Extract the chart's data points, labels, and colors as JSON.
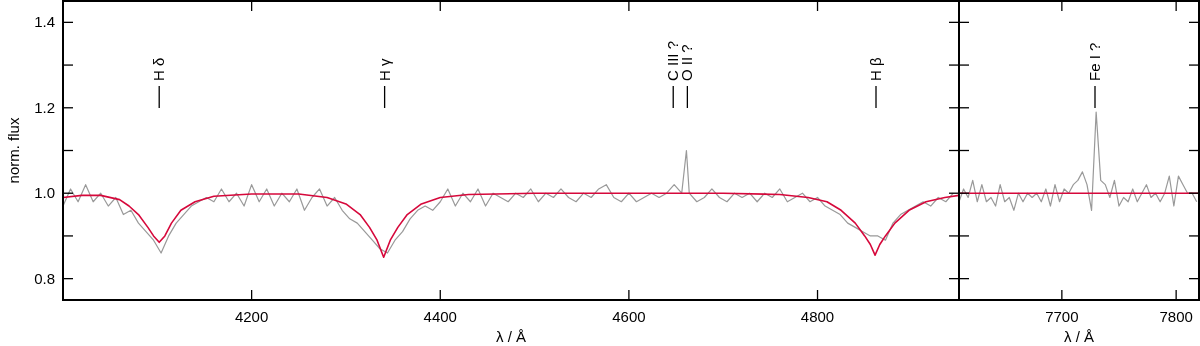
{
  "chart_data": [
    {
      "type": "line",
      "xlabel": "λ / Å",
      "ylabel": "norm. flux",
      "xlim": [
        4000,
        4950
      ],
      "ylim": [
        0.75,
        1.45
      ],
      "xticks": [
        4200,
        4400,
        4600,
        4800
      ],
      "yticks": [
        {
          "value": 0.8,
          "label": "0.8"
        },
        {
          "value": 0.9,
          "label": null
        },
        {
          "value": 1.0,
          "label": "1.0"
        },
        {
          "value": 1.1,
          "label": null
        },
        {
          "value": 1.2,
          "label": "1.2"
        },
        {
          "value": 1.3,
          "label": null
        },
        {
          "value": 1.4,
          "label": "1.4"
        }
      ],
      "grid": false,
      "annotations": [
        {
          "text": "H δ",
          "x": 4102
        },
        {
          "text": "H γ",
          "x": 4341
        },
        {
          "text": "C III ?",
          "x": 4647
        },
        {
          "text": "O II ?",
          "x": 4662
        },
        {
          "text": "H β",
          "x": 4862
        }
      ],
      "series": [
        {
          "color": "#999999",
          "x": [
            4000,
            4008,
            4016,
            4024,
            4032,
            4040,
            4048,
            4056,
            4064,
            4072,
            4080,
            4088,
            4096,
            4104,
            4112,
            4120,
            4128,
            4136,
            4144,
            4152,
            4160,
            4168,
            4176,
            4184,
            4192,
            4200,
            4208,
            4216,
            4224,
            4232,
            4240,
            4248,
            4256,
            4264,
            4272,
            4280,
            4288,
            4296,
            4304,
            4312,
            4320,
            4328,
            4336,
            4344,
            4352,
            4360,
            4368,
            4376,
            4384,
            4392,
            4400,
            4408,
            4416,
            4424,
            4432,
            4440,
            4448,
            4456,
            4464,
            4472,
            4480,
            4488,
            4496,
            4504,
            4512,
            4520,
            4528,
            4536,
            4544,
            4552,
            4560,
            4568,
            4576,
            4584,
            4592,
            4600,
            4608,
            4616,
            4624,
            4632,
            4640,
            4648,
            4656,
            4661,
            4664,
            4672,
            4680,
            4688,
            4696,
            4704,
            4712,
            4720,
            4728,
            4736,
            4744,
            4752,
            4760,
            4768,
            4776,
            4784,
            4792,
            4800,
            4808,
            4816,
            4824,
            4832,
            4840,
            4848,
            4856,
            4864,
            4872,
            4880,
            4888,
            4896,
            4904,
            4912,
            4920,
            4928,
            4936,
            4944
          ],
          "values": [
            0.97,
            1.01,
            0.98,
            1.02,
            0.98,
            1.0,
            0.97,
            0.99,
            0.95,
            0.96,
            0.93,
            0.91,
            0.89,
            0.86,
            0.9,
            0.93,
            0.95,
            0.97,
            0.98,
            0.99,
            0.98,
            1.01,
            0.98,
            1.0,
            0.97,
            1.02,
            0.98,
            1.01,
            0.97,
            1.0,
            0.98,
            1.01,
            0.96,
            0.99,
            1.01,
            0.97,
            0.99,
            0.96,
            0.94,
            0.93,
            0.91,
            0.89,
            0.87,
            0.86,
            0.89,
            0.91,
            0.94,
            0.96,
            0.97,
            0.96,
            0.98,
            1.01,
            0.97,
            1.0,
            0.98,
            1.01,
            0.97,
            1.0,
            0.99,
            0.98,
            1.0,
            0.99,
            1.01,
            0.98,
            1.0,
            0.99,
            1.01,
            0.99,
            0.98,
            1.0,
            0.99,
            1.01,
            1.02,
            0.99,
            0.98,
            1.0,
            0.98,
            0.99,
            1.0,
            0.99,
            1.0,
            1.02,
            1.0,
            1.1,
            1.0,
            0.98,
            0.99,
            1.01,
            0.99,
            0.98,
            1.0,
            0.99,
            1.0,
            0.98,
            1.0,
            0.99,
            1.01,
            0.98,
            0.99,
            1.0,
            0.98,
            0.99,
            0.97,
            0.96,
            0.95,
            0.93,
            0.92,
            0.91,
            0.9,
            0.9,
            0.89,
            0.93,
            0.95,
            0.96,
            0.97,
            0.98,
            0.97,
            0.99,
            0.98,
            1.0
          ]
        },
        {
          "color": "#d6083b",
          "x": [
            4000,
            4020,
            4040,
            4060,
            4070,
            4080,
            4090,
            4096,
            4102,
            4108,
            4115,
            4125,
            4140,
            4160,
            4200,
            4250,
            4280,
            4300,
            4315,
            4325,
            4333,
            4340,
            4347,
            4355,
            4365,
            4380,
            4400,
            4430,
            4500,
            4600,
            4700,
            4760,
            4790,
            4810,
            4825,
            4840,
            4850,
            4856,
            4861,
            4866,
            4872,
            4882,
            4897,
            4915,
            4935,
            4950
          ],
          "values": [
            0.99,
            0.995,
            0.995,
            0.985,
            0.97,
            0.95,
            0.92,
            0.9,
            0.885,
            0.9,
            0.93,
            0.96,
            0.98,
            0.993,
            0.998,
            0.998,
            0.99,
            0.975,
            0.95,
            0.92,
            0.89,
            0.85,
            0.89,
            0.92,
            0.95,
            0.975,
            0.99,
            0.997,
            1.0,
            1.0,
            1.0,
            0.997,
            0.99,
            0.98,
            0.96,
            0.93,
            0.9,
            0.88,
            0.855,
            0.88,
            0.9,
            0.93,
            0.96,
            0.98,
            0.99,
            0.995
          ]
        }
      ]
    },
    {
      "type": "line",
      "xlabel": "λ / Å",
      "xlim": [
        7610,
        7820
      ],
      "ylim": [
        0.75,
        1.45
      ],
      "xticks": [
        7700,
        7800
      ],
      "yticks": [
        {
          "value": 0.8,
          "label": null
        },
        {
          "value": 0.9,
          "label": null
        },
        {
          "value": 1.0,
          "label": null
        },
        {
          "value": 1.1,
          "label": null
        },
        {
          "value": 1.2,
          "label": null
        },
        {
          "value": 1.3,
          "label": null
        },
        {
          "value": 1.4,
          "label": null
        }
      ],
      "tick_labels": "x",
      "grid": false,
      "annotations": [
        {
          "text": "Fe I ?",
          "x": 7729
        }
      ],
      "series": [
        {
          "color": "#999999",
          "x": [
            7610,
            7614,
            7618,
            7622,
            7626,
            7630,
            7634,
            7638,
            7642,
            7646,
            7650,
            7654,
            7658,
            7662,
            7666,
            7670,
            7674,
            7678,
            7682,
            7686,
            7690,
            7694,
            7698,
            7702,
            7706,
            7710,
            7714,
            7718,
            7722,
            7726,
            7730,
            7734,
            7738,
            7742,
            7746,
            7750,
            7754,
            7758,
            7762,
            7766,
            7770,
            7774,
            7778,
            7782,
            7786,
            7790,
            7794,
            7798,
            7802,
            7806,
            7810,
            7814,
            7818
          ],
          "values": [
            0.98,
            1.01,
            0.99,
            1.03,
            0.98,
            1.02,
            0.98,
            0.99,
            0.97,
            1.02,
            0.98,
            0.99,
            0.96,
            1.0,
            0.98,
            1.0,
            0.99,
            1.0,
            0.98,
            1.01,
            0.97,
            1.02,
            0.98,
            1.01,
            1.0,
            1.02,
            1.03,
            1.05,
            1.02,
            0.96,
            1.19,
            1.03,
            1.02,
            0.99,
            1.03,
            0.97,
            0.99,
            0.98,
            1.01,
            0.98,
            1.0,
            1.02,
            0.99,
            1.0,
            0.98,
            1.0,
            1.04,
            0.97,
            1.04,
            1.02,
            1.0,
            1.0,
            0.98
          ]
        },
        {
          "color": "#d6083b",
          "x": [
            7610,
            7820
          ],
          "values": [
            1.0,
            1.0
          ]
        }
      ]
    }
  ]
}
